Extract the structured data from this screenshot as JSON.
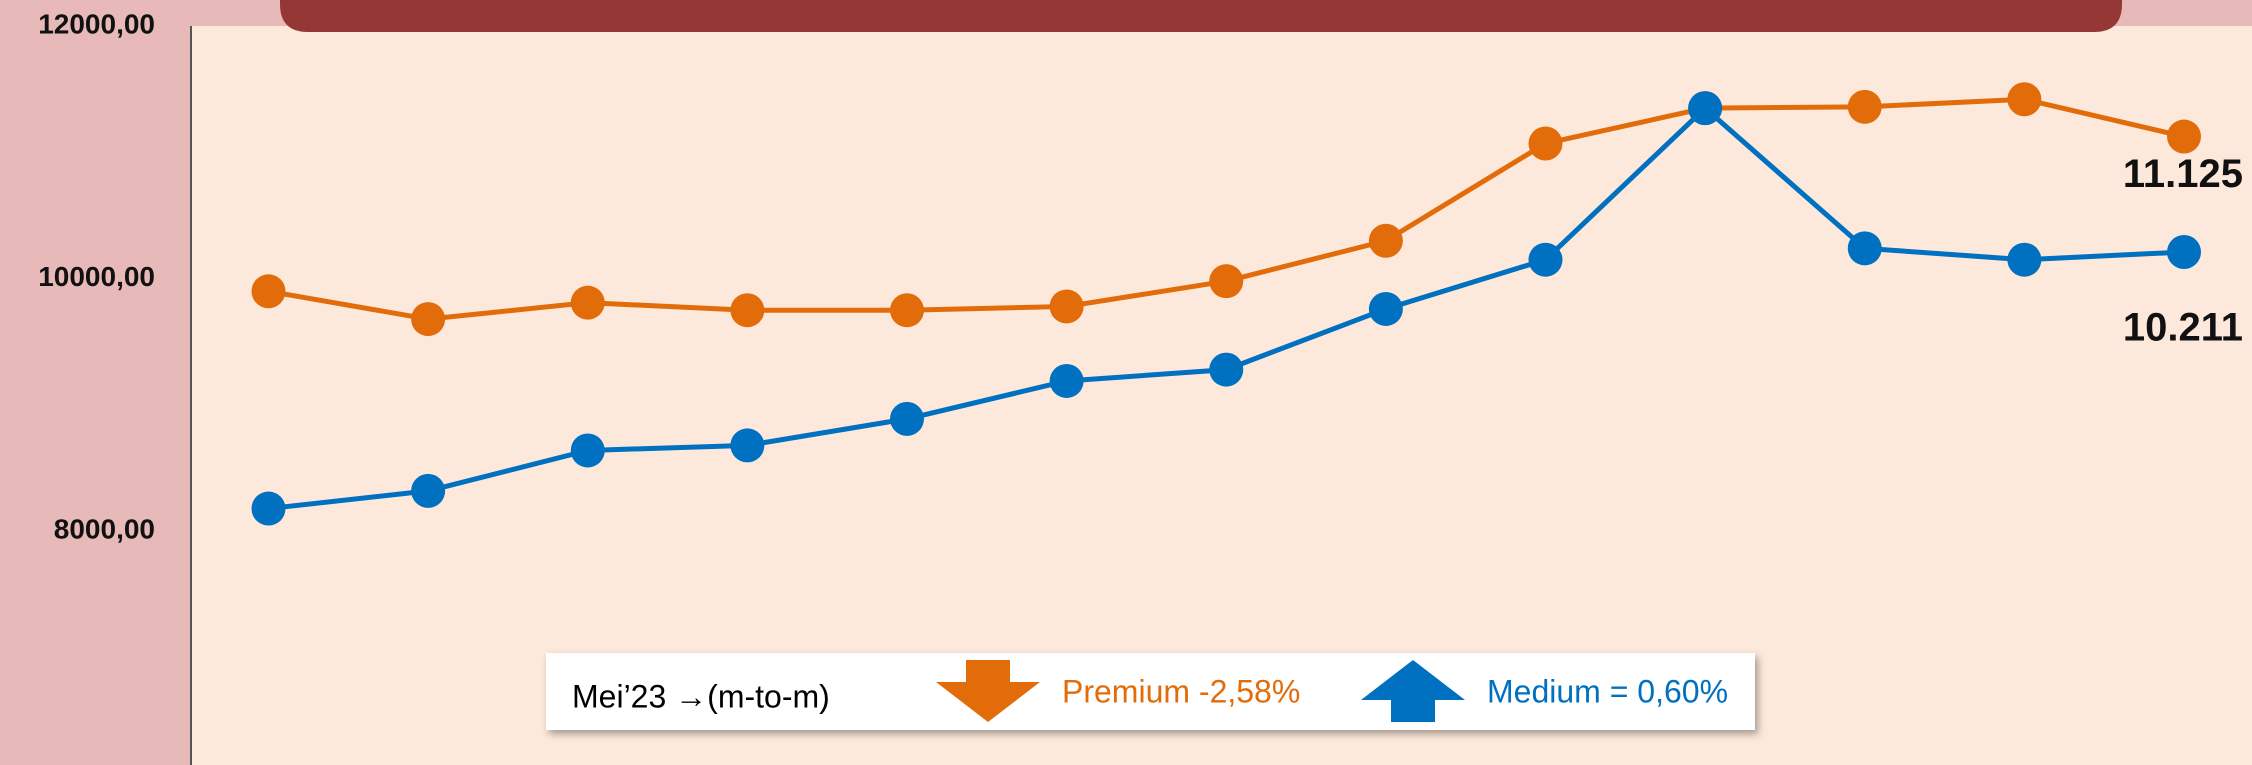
{
  "chart_data": {
    "type": "line",
    "categories": [
      null,
      null,
      null,
      null,
      null,
      null,
      null,
      null,
      null,
      null,
      null,
      null,
      null
    ],
    "legend_title": "Mei’23 →(m-to-m)",
    "series": [
      {
        "name": "Premium -2,58%",
        "color": "#e36c0a",
        "direction": "down",
        "values": [
          9900,
          9680,
          9810,
          9750,
          9750,
          9780,
          9980,
          10300,
          11070,
          11350,
          11360,
          11420,
          11125
        ],
        "value_labels": [
          null,
          null,
          null,
          null,
          null,
          null,
          null,
          null,
          null,
          null,
          null,
          null,
          "11.125"
        ]
      },
      {
        "name": "Medium = 0,60%",
        "color": "#0070c0",
        "direction": "up",
        "values": [
          8180,
          8320,
          8640,
          8680,
          8890,
          9190,
          9280,
          9760,
          10150,
          11350,
          10240,
          10150,
          10211
        ],
        "value_labels": [
          null,
          null,
          null,
          null,
          null,
          null,
          null,
          null,
          null,
          null,
          null,
          null,
          "10.211"
        ]
      }
    ],
    "ylim": [
      6150,
      12000
    ],
    "yticks": [
      {
        "value": 8000,
        "label": "8000,00"
      },
      {
        "value": 10000,
        "label": "10000,00"
      },
      {
        "value": 12000,
        "label": "12000,00"
      }
    ],
    "grid": false
  }
}
